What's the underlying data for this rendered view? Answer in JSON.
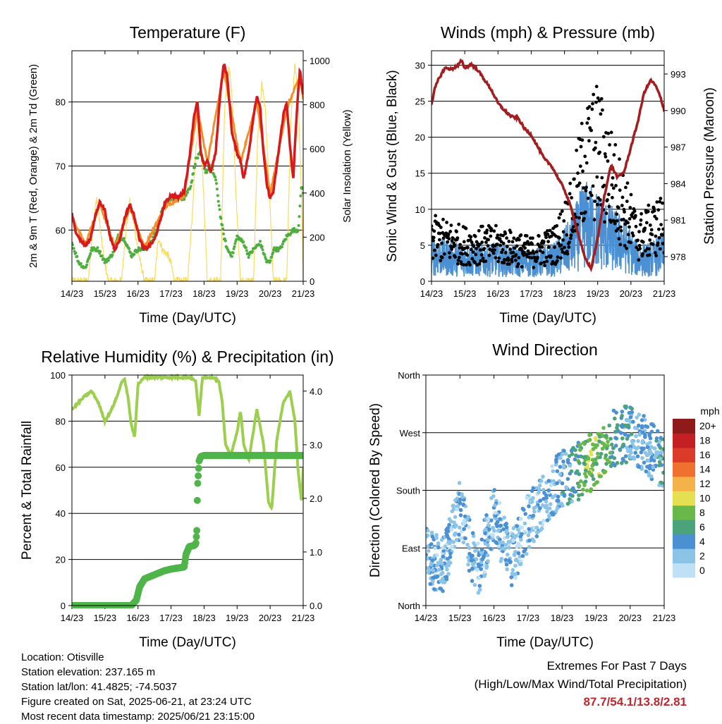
{
  "chart_data": [
    {
      "type": "line",
      "title": "Temperature (F)",
      "xlabel": "Time (Day/UTC)",
      "ylabel": "2m & 9m T (Red, Orange) & 2m Td (Green)",
      "y2label": "Solar Insolation (Yellow)",
      "x_ticks": [
        "14/23",
        "15/23",
        "16/23",
        "17/23",
        "18/23",
        "19/23",
        "20/23",
        "21/23"
      ],
      "ylim": [
        52,
        88
      ],
      "y_ticks": [
        60,
        70,
        80
      ],
      "y2lim": [
        0,
        1000
      ],
      "y2_ticks": [
        0,
        200,
        400,
        600,
        800,
        1000
      ],
      "grid": true,
      "series": [
        {
          "name": "2m T",
          "color": "#d7191c",
          "axis": "left",
          "x": [
            0,
            0.1,
            0.25,
            0.4,
            0.55,
            0.7,
            0.85,
            1.0,
            1.15,
            1.3,
            1.45,
            1.6,
            1.75,
            1.9,
            2.05,
            2.2,
            2.35,
            2.5,
            2.65,
            2.8,
            3.0,
            3.2,
            3.4,
            3.55,
            3.7,
            3.8,
            3.9,
            4.0,
            4.1,
            4.2,
            4.35,
            4.5,
            4.6,
            4.7,
            4.85,
            5.0,
            5.1,
            5.2,
            5.35,
            5.5,
            5.6,
            5.7,
            5.8,
            5.9,
            6.0,
            6.1,
            6.2,
            6.3,
            6.4,
            6.5,
            6.6,
            6.7,
            6.8,
            6.9,
            6.95,
            7.0
          ],
          "values": [
            62.5,
            60,
            58.5,
            57.5,
            58.5,
            62,
            64.5,
            63,
            59,
            57,
            58.5,
            62,
            64,
            62,
            58.5,
            57,
            57.5,
            58.5,
            61,
            64,
            65.5,
            65,
            66,
            71,
            78,
            80,
            72,
            70,
            71,
            69,
            72,
            82,
            86,
            84,
            75,
            72,
            71,
            68,
            72,
            78,
            81,
            79,
            72,
            67,
            65,
            66,
            70,
            74,
            78,
            80,
            73,
            68,
            78,
            85,
            83,
            81
          ]
        },
        {
          "name": "9m T",
          "color": "#f28e2b",
          "axis": "left",
          "x": [
            0,
            0.4,
            0.85,
            1.3,
            1.75,
            2.2,
            2.8,
            3.4,
            3.8,
            4.1,
            4.6,
            5.1,
            5.6,
            6.0,
            6.5,
            6.9,
            7.0
          ],
          "values": [
            62,
            57.8,
            64,
            57.3,
            63.5,
            57.3,
            63.5,
            65.5,
            79,
            70.5,
            85,
            70.5,
            80,
            65.5,
            79,
            84,
            80.5
          ]
        },
        {
          "name": "2m Td",
          "color": "#4fae3f",
          "axis": "left",
          "x": [
            0,
            0.2,
            0.4,
            0.6,
            0.8,
            1.0,
            1.2,
            1.4,
            1.6,
            1.8,
            2.0,
            2.2,
            2.4,
            2.6,
            2.8,
            3.0,
            3.2,
            3.4,
            3.6,
            3.75,
            3.9,
            4.05,
            4.2,
            4.35,
            4.5,
            4.6,
            4.7,
            4.85,
            5.0,
            5.2,
            5.35,
            5.5,
            5.7,
            5.9,
            6.0,
            6.1,
            6.3,
            6.5,
            6.7,
            6.85,
            6.95,
            7.0
          ],
          "values": [
            58,
            55,
            54,
            57,
            57,
            55,
            56,
            59,
            58.5,
            56,
            57,
            57,
            58,
            61,
            64,
            65,
            65,
            65,
            67,
            71,
            72,
            69,
            70,
            68,
            62,
            59,
            57,
            56,
            59,
            58,
            56,
            57,
            58,
            55,
            55,
            57,
            57,
            59,
            60,
            60,
            67,
            66
          ]
        },
        {
          "name": "Solar Insolation",
          "color": "#f7d84a",
          "axis": "right",
          "x": [
            0,
            0.5,
            0.62,
            0.75,
            0.85,
            0.95,
            1.1,
            1.5,
            1.62,
            1.75,
            1.9,
            2.05,
            2.2,
            2.5,
            2.62,
            2.75,
            2.9,
            3.0,
            3.1,
            3.5,
            3.62,
            3.75,
            3.85,
            3.95,
            4.1,
            4.5,
            4.62,
            4.75,
            4.85,
            4.95,
            5.1,
            5.5,
            5.62,
            5.75,
            5.85,
            5.95,
            6.1,
            6.5,
            6.62,
            6.75,
            6.85,
            6.95,
            7.0
          ],
          "values": [
            0,
            0,
            230,
            380,
            250,
            120,
            0,
            0,
            210,
            360,
            240,
            100,
            0,
            0,
            200,
            140,
            120,
            80,
            0,
            0,
            250,
            600,
            740,
            520,
            0,
            0,
            780,
            980,
            830,
            450,
            0,
            0,
            640,
            900,
            780,
            480,
            0,
            0,
            700,
            990,
            810,
            380,
            0
          ]
        }
      ]
    },
    {
      "type": "scatter",
      "title": "Winds (mph) & Pressure (mb)",
      "xlabel": "Time (Day/UTC)",
      "ylabel": "Sonic Wind & Gust (Blue, Black)",
      "y2label": "Station Pressure (Maroon)",
      "x_ticks": [
        "14/23",
        "15/23",
        "16/23",
        "17/23",
        "18/23",
        "19/23",
        "20/23",
        "21/23"
      ],
      "ylim": [
        0,
        32
      ],
      "y_ticks": [
        0,
        5,
        10,
        15,
        20,
        25,
        30
      ],
      "y2_ticks": [
        978,
        981,
        984,
        987,
        990,
        993
      ],
      "grid": true,
      "series": [
        {
          "name": "Sonic Wind",
          "color": "#4a90d2",
          "mean_x": [
            0,
            1,
            2,
            3,
            3.7,
            4.2,
            4.6,
            5.0,
            5.4,
            5.8,
            6.2,
            6.6,
            7.0
          ],
          "mean_values": [
            3.5,
            3,
            3,
            2.5,
            3,
            5,
            8,
            7,
            6,
            5,
            3,
            3,
            4
          ]
        },
        {
          "name": "Gust",
          "color": "#000000",
          "mean_x": [
            0,
            1,
            2,
            3,
            3.7,
            4.2,
            4.6,
            5.0,
            5.4,
            5.8,
            6.2,
            6.6,
            7.0
          ],
          "mean_values": [
            6,
            5,
            5,
            4,
            5,
            9,
            16,
            18,
            14,
            10,
            6,
            7,
            8
          ]
        },
        {
          "name": "Station Pressure",
          "color": "#a31d20",
          "axis": "right",
          "x": [
            0,
            0.1,
            0.2,
            0.4,
            0.6,
            0.8,
            0.9,
            1.0,
            1.2,
            1.4,
            1.6,
            1.8,
            2.0,
            2.2,
            2.4,
            2.6,
            2.8,
            3.0,
            3.2,
            3.4,
            3.6,
            3.8,
            4.0,
            4.2,
            4.4,
            4.6,
            4.8,
            5.0,
            5.2,
            5.4,
            5.6,
            5.8,
            6.0,
            6.2,
            6.4,
            6.6,
            6.75,
            6.9,
            7.0
          ],
          "values": [
            990.5,
            991.8,
            992.5,
            993.5,
            993.4,
            993.7,
            994.1,
            993.5,
            993.8,
            993.3,
            992.5,
            991.7,
            990.6,
            990.0,
            989.5,
            989.4,
            988.5,
            988.0,
            987.0,
            986.0,
            985.5,
            984.5,
            983.5,
            982.0,
            980.0,
            978.0,
            977.0,
            979.5,
            983.0,
            985.5,
            984.5,
            985.0,
            987.0,
            989.0,
            991.5,
            992.5,
            992.0,
            991.0,
            990.0
          ]
        }
      ]
    },
    {
      "type": "line",
      "title": "Relative Humidity (%) & Precipitation (in)",
      "xlabel": "Time (Day/UTC)",
      "ylabel": "Percent & Total Rainfall",
      "x_ticks": [
        "14/23",
        "15/23",
        "16/23",
        "17/23",
        "18/23",
        "19/23",
        "20/23",
        "21/23"
      ],
      "ylim": [
        0,
        100
      ],
      "y_ticks": [
        0,
        20,
        40,
        60,
        80,
        100
      ],
      "y2lim": [
        0,
        4.3
      ],
      "y2_ticks": [
        "0.0",
        "1.0",
        "2.0",
        "3.0",
        "4.0"
      ],
      "grid": true,
      "series": [
        {
          "name": "Relative Humidity",
          "color": "#9ccf4d",
          "axis": "left",
          "x": [
            0,
            0.2,
            0.4,
            0.6,
            0.8,
            1.0,
            1.2,
            1.4,
            1.5,
            1.6,
            1.7,
            1.8,
            1.9,
            2.0,
            2.2,
            2.4,
            2.6,
            2.8,
            3.0,
            3.2,
            3.4,
            3.6,
            3.75,
            3.85,
            3.95,
            4.1,
            4.3,
            4.45,
            4.55,
            4.65,
            4.8,
            5.0,
            5.1,
            5.2,
            5.35,
            5.45,
            5.6,
            5.8,
            5.95,
            6.05,
            6.2,
            6.4,
            6.6,
            6.75,
            6.85,
            6.95,
            7.0
          ],
          "values": [
            85,
            88,
            91,
            93,
            88,
            80,
            85,
            92,
            97,
            98,
            90,
            78,
            73,
            96,
            99,
            99,
            99,
            99,
            99,
            99,
            99,
            99,
            97,
            82,
            99,
            99,
            99,
            97,
            88,
            70,
            65,
            75,
            85,
            70,
            63,
            72,
            85,
            70,
            45,
            42,
            72,
            88,
            93,
            80,
            58,
            45,
            60
          ]
        },
        {
          "name": "Total Precipitation",
          "color": "#4fb54a",
          "axis": "right",
          "x": [
            0,
            0.5,
            1.0,
            1.5,
            1.8,
            1.95,
            2.05,
            2.2,
            2.4,
            2.6,
            2.8,
            3.0,
            3.2,
            3.4,
            3.45,
            3.55,
            3.7,
            3.75,
            3.78,
            3.8,
            3.85,
            3.9,
            4.0,
            5.0,
            6.0,
            7.0
          ],
          "values": [
            0,
            0,
            0,
            0,
            0,
            0.1,
            0.35,
            0.5,
            0.55,
            0.6,
            0.65,
            0.68,
            0.7,
            0.72,
            0.95,
            1.1,
            1.12,
            1.15,
            1.4,
            2.2,
            2.7,
            2.78,
            2.8,
            2.8,
            2.8,
            2.8
          ]
        }
      ]
    },
    {
      "type": "scatter",
      "title": "Wind Direction",
      "xlabel": "Time (Day/UTC)",
      "ylabel": "Direction (Colored By Speed)",
      "x_ticks": [
        "14/23",
        "15/23",
        "16/23",
        "17/23",
        "18/23",
        "19/23",
        "20/23",
        "21/23"
      ],
      "y_ticks": [
        "North",
        "East",
        "South",
        "West",
        "North"
      ],
      "ylim": [
        0,
        360
      ],
      "grid": true,
      "trend_x": [
        0,
        0.5,
        1,
        1.5,
        2,
        2.5,
        3,
        3.5,
        4,
        4.5,
        5,
        5.5,
        6,
        6.5,
        7
      ],
      "trend_dir": [
        80,
        60,
        150,
        50,
        140,
        70,
        130,
        170,
        200,
        210,
        230,
        260,
        270,
        250,
        220
      ],
      "colorbar": {
        "label": "mph",
        "ticks": [
          "0",
          "2",
          "4",
          "6",
          "8",
          "10",
          "12",
          "14",
          "16",
          "18",
          "20+"
        ],
        "colors": [
          "#bfe0f5",
          "#8cc4e8",
          "#4a90d2",
          "#4aa37a",
          "#6ab84a",
          "#e4e052",
          "#f5b24a",
          "#f07030",
          "#dd3b2a",
          "#c41f22",
          "#8f1a1a"
        ]
      }
    }
  ],
  "footer": {
    "location": "Location: Otisville",
    "elevation": "Station elevation: 237.165 m",
    "latlon": "Station lat/lon: 41.4825; -74.5037",
    "created": "Figure created on Sat, 2025-06-21, at 23:24 UTC",
    "recent": "Most recent data timestamp: 2025/06/21 23:15:00"
  },
  "extremes": {
    "title": "Extremes For Past 7 Days",
    "subtitle": "(High/Low/Max Wind/Total Precipitation)",
    "values": "87.7/54.1/13.8/2.81"
  }
}
